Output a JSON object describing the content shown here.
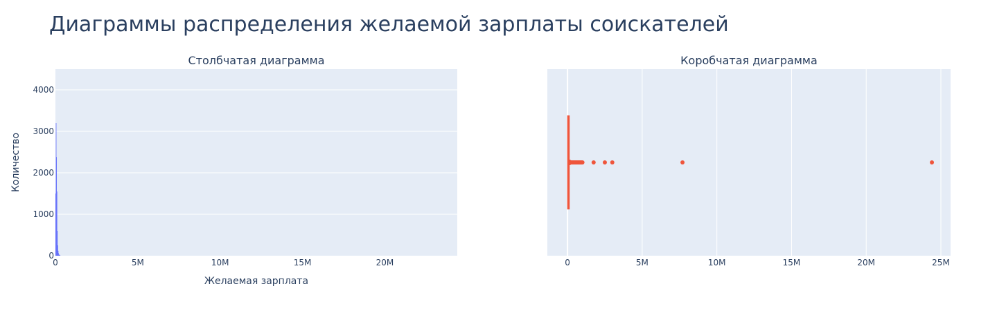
{
  "page": {
    "title": "Диаграммы распределения желаемой зарплаты соискателей"
  },
  "colors": {
    "plot_bg": "#e5ecf6",
    "grid": "#ffffff",
    "text": "#2a3f5f",
    "histogram": "#636efa",
    "boxplot": "#ef553b"
  },
  "chart_data": [
    {
      "type": "bar",
      "title": "Столбчатая диаграмма",
      "xlabel": "Желаемая зарплата",
      "ylabel": "Количество",
      "xlim": [
        0,
        24400000
      ],
      "ylim": [
        0,
        4500
      ],
      "x_ticks": [
        0,
        5000000,
        10000000,
        15000000,
        20000000
      ],
      "x_tick_labels": [
        "0",
        "5M",
        "10M",
        "15M",
        "20M"
      ],
      "y_ticks": [
        0,
        1000,
        2000,
        3000,
        4000
      ],
      "y_tick_labels": [
        "0",
        "1000",
        "2000",
        "3000",
        "4000"
      ],
      "grid": true,
      "bin_width": 25000,
      "bins": [
        {
          "x0": 0,
          "x1": 25000,
          "count": 1500
        },
        {
          "x0": 25000,
          "x1": 50000,
          "count": 3200
        },
        {
          "x0": 50000,
          "x1": 75000,
          "count": 2380
        },
        {
          "x0": 75000,
          "x1": 100000,
          "count": 1550
        },
        {
          "x0": 100000,
          "x1": 125000,
          "count": 600
        },
        {
          "x0": 125000,
          "x1": 150000,
          "count": 250
        },
        {
          "x0": 150000,
          "x1": 175000,
          "count": 120
        },
        {
          "x0": 175000,
          "x1": 200000,
          "count": 60
        },
        {
          "x0": 200000,
          "x1": 225000,
          "count": 30
        },
        {
          "x0": 225000,
          "x1": 250000,
          "count": 20
        },
        {
          "x0": 250000,
          "x1": 300000,
          "count": 10
        }
      ]
    },
    {
      "type": "box",
      "title": "Коробчатая диаграмма",
      "xlim": [
        -1350000,
        25650000
      ],
      "x_ticks": [
        0,
        5000000,
        10000000,
        15000000,
        20000000,
        25000000
      ],
      "x_tick_labels": [
        "0",
        "5M",
        "10M",
        "15M",
        "20M",
        "25M"
      ],
      "grid": true,
      "orientation": "horizontal",
      "q1": 30000,
      "median": 50000,
      "q3": 80000,
      "whisker_low": 0,
      "whisker_high": 160000,
      "outliers": [
        170000,
        200000,
        230000,
        260000,
        300000,
        350000,
        400000,
        450000,
        500000,
        550000,
        600000,
        650000,
        700000,
        750000,
        800000,
        850000,
        900000,
        950000,
        1000000,
        1750000,
        2500000,
        3000000,
        7700000,
        24400000
      ]
    }
  ]
}
